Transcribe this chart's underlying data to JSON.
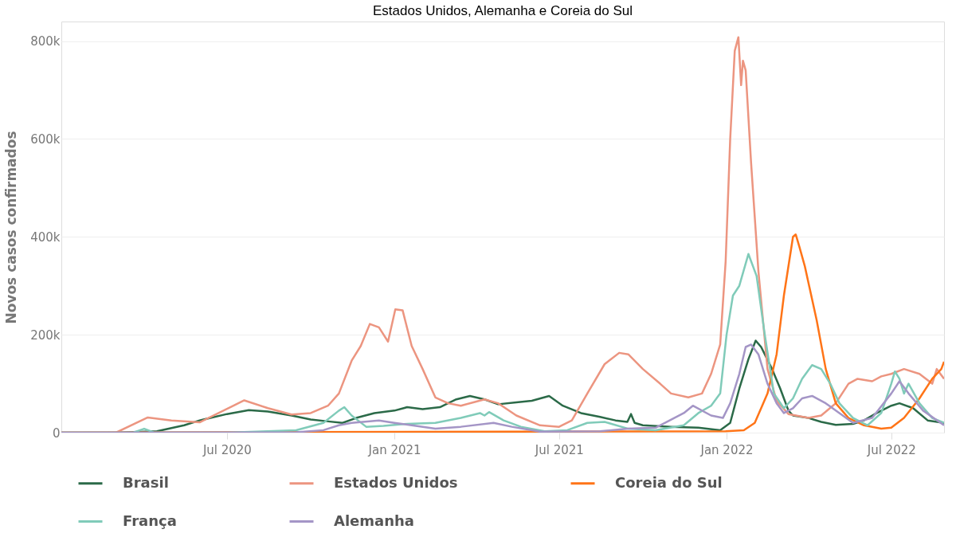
{
  "chart_data": {
    "type": "line",
    "title": "Estados Unidos, Alemanha e Coreia do Sul",
    "ylabel": "Novos casos confirmados",
    "xlim": [
      "2020-01-01",
      "2022-08-28"
    ],
    "xticks": [
      {
        "value": "2020-07-01",
        "label": "Jul 2020"
      },
      {
        "value": "2021-01-01",
        "label": "Jan 2021"
      },
      {
        "value": "2021-07-01",
        "label": "Jul 2021"
      },
      {
        "value": "2022-01-01",
        "label": "Jan 2022"
      },
      {
        "value": "2022-07-01",
        "label": "Jul 2022"
      }
    ],
    "ylim": [
      0,
      840000
    ],
    "yticks": [
      {
        "value": 0,
        "label": "0"
      },
      {
        "value": 200000,
        "label": "200k"
      },
      {
        "value": 400000,
        "label": "400k"
      },
      {
        "value": 600000,
        "label": "600k"
      },
      {
        "value": 800000,
        "label": "800k"
      }
    ],
    "grid": "y",
    "legend": "bottom",
    "line_style": "solid",
    "marker": "none",
    "series": [
      {
        "name": "Brasil",
        "color": "#2b6a48",
        "x": [
          "2020-01-01",
          "2020-03-01",
          "2020-04-15",
          "2020-05-15",
          "2020-06-01",
          "2020-07-01",
          "2020-07-25",
          "2020-08-15",
          "2020-09-10",
          "2020-10-01",
          "2020-10-20",
          "2020-11-05",
          "2020-11-20",
          "2020-12-10",
          "2021-01-01",
          "2021-01-15",
          "2021-02-01",
          "2021-02-20",
          "2021-03-10",
          "2021-03-25",
          "2021-04-10",
          "2021-04-25",
          "2021-05-15",
          "2021-06-01",
          "2021-06-20",
          "2021-07-05",
          "2021-07-25",
          "2021-08-15",
          "2021-09-01",
          "2021-09-14",
          "2021-09-18",
          "2021-09-22",
          "2021-10-01",
          "2021-11-01",
          "2021-12-01",
          "2021-12-25",
          "2022-01-05",
          "2022-01-15",
          "2022-01-25",
          "2022-02-02",
          "2022-02-08",
          "2022-02-20",
          "2022-03-01",
          "2022-03-10",
          "2022-03-15",
          "2022-04-01",
          "2022-04-15",
          "2022-05-01",
          "2022-05-20",
          "2022-06-01",
          "2022-06-15",
          "2022-07-01",
          "2022-07-10",
          "2022-07-25",
          "2022-08-10",
          "2022-08-28"
        ],
        "values": [
          0,
          0,
          3000,
          15000,
          25000,
          38000,
          46000,
          43000,
          35000,
          27000,
          23000,
          20000,
          30000,
          40000,
          45000,
          52000,
          48000,
          52000,
          68000,
          75000,
          68000,
          58000,
          62000,
          65000,
          75000,
          55000,
          40000,
          32000,
          25000,
          22000,
          38000,
          20000,
          15000,
          12000,
          10000,
          5000,
          20000,
          90000,
          150000,
          188000,
          175000,
          130000,
          90000,
          45000,
          35000,
          30000,
          22000,
          16000,
          18000,
          25000,
          40000,
          55000,
          60000,
          50000,
          25000,
          20000
        ]
      },
      {
        "name": "Estados Unidos",
        "color": "#ec9580",
        "x": [
          "2020-01-01",
          "2020-03-01",
          "2020-04-05",
          "2020-05-01",
          "2020-06-01",
          "2020-07-20",
          "2020-08-15",
          "2020-09-10",
          "2020-10-01",
          "2020-10-20",
          "2020-11-01",
          "2020-11-15",
          "2020-11-25",
          "2020-12-05",
          "2020-12-15",
          "2020-12-25",
          "2021-01-02",
          "2021-01-10",
          "2021-01-20",
          "2021-02-01",
          "2021-02-15",
          "2021-03-01",
          "2021-03-15",
          "2021-04-10",
          "2021-04-25",
          "2021-05-15",
          "2021-06-10",
          "2021-07-01",
          "2021-07-15",
          "2021-08-01",
          "2021-08-20",
          "2021-09-05",
          "2021-09-15",
          "2021-10-01",
          "2021-10-20",
          "2021-11-01",
          "2021-11-20",
          "2021-12-05",
          "2021-12-15",
          "2021-12-25",
          "2021-12-31",
          "2022-01-05",
          "2022-01-10",
          "2022-01-14",
          "2022-01-17",
          "2022-01-19",
          "2022-01-22",
          "2022-01-28",
          "2022-02-05",
          "2022-02-15",
          "2022-02-25",
          "2022-03-10",
          "2022-04-01",
          "2022-04-15",
          "2022-05-01",
          "2022-05-15",
          "2022-05-25",
          "2022-06-10",
          "2022-06-20",
          "2022-07-01",
          "2022-07-15",
          "2022-08-01",
          "2022-08-15",
          "2022-08-20",
          "2022-08-28"
        ],
        "values": [
          0,
          0,
          31000,
          25000,
          21000,
          66000,
          50000,
          37000,
          40000,
          55000,
          80000,
          147000,
          177000,
          222000,
          215000,
          186000,
          252000,
          250000,
          177000,
          130000,
          72000,
          60000,
          55000,
          68000,
          60000,
          35000,
          15000,
          12000,
          25000,
          80000,
          140000,
          163000,
          160000,
          130000,
          100000,
          80000,
          72000,
          80000,
          120000,
          180000,
          350000,
          600000,
          780000,
          808000,
          710000,
          760000,
          740000,
          550000,
          330000,
          130000,
          65000,
          38000,
          30000,
          35000,
          60000,
          100000,
          110000,
          105000,
          115000,
          120000,
          130000,
          120000,
          100000,
          130000,
          110000
        ]
      },
      {
        "name": "Coreia do Sul",
        "color": "#ff7417",
        "x": [
          "2020-01-01",
          "2021-12-31",
          "2022-01-20",
          "2022-02-01",
          "2022-02-15",
          "2022-02-25",
          "2022-03-05",
          "2022-03-15",
          "2022-03-18",
          "2022-03-22",
          "2022-03-28",
          "2022-04-10",
          "2022-04-20",
          "2022-05-01",
          "2022-05-15",
          "2022-06-01",
          "2022-06-20",
          "2022-07-01",
          "2022-07-15",
          "2022-08-01",
          "2022-08-15",
          "2022-08-25",
          "2022-08-28"
        ],
        "values": [
          0,
          3000,
          5000,
          20000,
          80000,
          160000,
          280000,
          400000,
          405000,
          380000,
          340000,
          230000,
          130000,
          60000,
          30000,
          15000,
          8000,
          10000,
          30000,
          70000,
          110000,
          130000,
          145000
        ]
      },
      {
        "name": "França",
        "color": "#80cbb9",
        "x": [
          "2020-01-01",
          "2020-03-20",
          "2020-04-01",
          "2020-04-12",
          "2020-07-01",
          "2020-09-15",
          "2020-10-15",
          "2020-11-01",
          "2020-11-07",
          "2020-11-15",
          "2020-12-01",
          "2020-12-20",
          "2021-01-15",
          "2021-02-15",
          "2021-03-15",
          "2021-04-05",
          "2021-04-10",
          "2021-04-15",
          "2021-05-01",
          "2021-05-20",
          "2021-06-15",
          "2021-07-10",
          "2021-08-01",
          "2021-08-20",
          "2021-09-15",
          "2021-10-15",
          "2021-11-15",
          "2021-12-01",
          "2021-12-15",
          "2021-12-25",
          "2022-01-01",
          "2022-01-08",
          "2022-01-15",
          "2022-01-25",
          "2022-02-03",
          "2022-02-12",
          "2022-02-22",
          "2022-03-05",
          "2022-03-15",
          "2022-03-25",
          "2022-04-05",
          "2022-04-15",
          "2022-04-25",
          "2022-05-05",
          "2022-05-20",
          "2022-06-05",
          "2022-06-20",
          "2022-07-01",
          "2022-07-05",
          "2022-07-10",
          "2022-07-15",
          "2022-07-20",
          "2022-08-01",
          "2022-08-15",
          "2022-08-28"
        ],
        "values": [
          0,
          0,
          8000,
          0,
          0,
          5000,
          20000,
          45000,
          52000,
          35000,
          12000,
          14000,
          18000,
          20000,
          30000,
          40000,
          35000,
          42000,
          25000,
          12000,
          3000,
          5000,
          20000,
          22000,
          8000,
          5000,
          15000,
          40000,
          55000,
          80000,
          200000,
          280000,
          300000,
          365000,
          320000,
          200000,
          80000,
          50000,
          70000,
          110000,
          138000,
          130000,
          100000,
          60000,
          30000,
          15000,
          40000,
          100000,
          125000,
          110000,
          80000,
          100000,
          60000,
          30000,
          20000
        ]
      },
      {
        "name": "Alemanha",
        "color": "#a495c6",
        "x": [
          "2020-01-01",
          "2020-09-15",
          "2020-10-15",
          "2020-11-01",
          "2020-11-15",
          "2020-12-15",
          "2021-01-01",
          "2021-01-20",
          "2021-02-15",
          "2021-03-15",
          "2021-04-20",
          "2021-05-10",
          "2021-06-10",
          "2021-08-15",
          "2021-09-15",
          "2021-10-15",
          "2021-11-15",
          "2021-11-25",
          "2021-12-15",
          "2021-12-28",
          "2022-01-05",
          "2022-01-15",
          "2022-01-22",
          "2022-01-28",
          "2022-02-05",
          "2022-02-15",
          "2022-02-25",
          "2022-03-05",
          "2022-03-15",
          "2022-03-25",
          "2022-04-05",
          "2022-04-20",
          "2022-05-05",
          "2022-05-20",
          "2022-06-10",
          "2022-07-01",
          "2022-07-10",
          "2022-07-20",
          "2022-08-05",
          "2022-08-28"
        ],
        "values": [
          0,
          1000,
          5000,
          15000,
          20000,
          25000,
          20000,
          15000,
          8000,
          12000,
          20000,
          12000,
          2000,
          3000,
          8000,
          10000,
          40000,
          55000,
          35000,
          30000,
          60000,
          120000,
          175000,
          180000,
          160000,
          100000,
          60000,
          40000,
          50000,
          70000,
          75000,
          60000,
          40000,
          20000,
          30000,
          80000,
          105000,
          80000,
          45000,
          15000
        ]
      }
    ]
  }
}
